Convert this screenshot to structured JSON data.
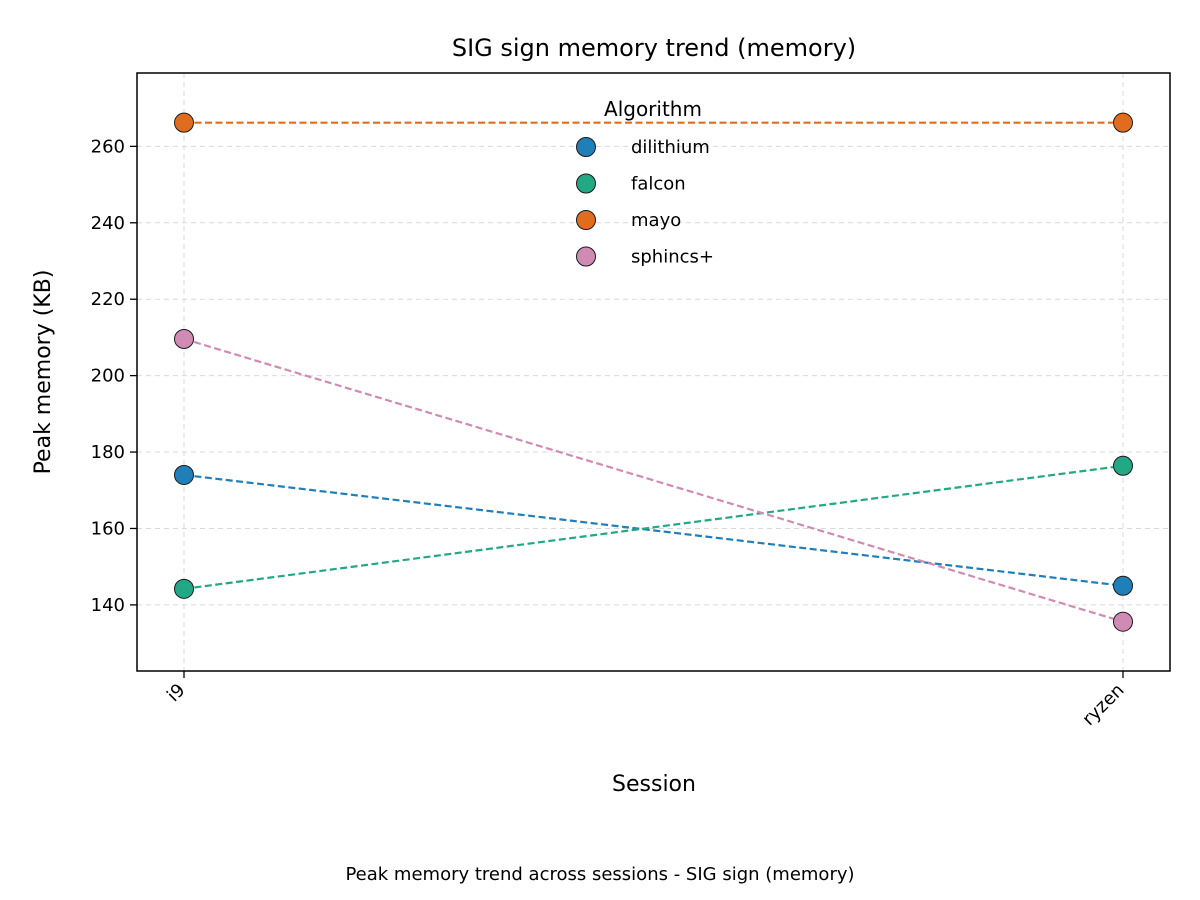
{
  "chart_data": {
    "type": "line",
    "title": "SIG sign memory trend (memory)",
    "xlabel": "Session",
    "ylabel": "Peak memory (KB)",
    "categories": [
      "i9",
      "ryzen"
    ],
    "ylim": [
      122.7,
      279.2
    ],
    "yticks": [
      140,
      160,
      180,
      200,
      220,
      240,
      260
    ],
    "grid": true,
    "line_style": "dashed",
    "legend": {
      "title": "Algorithm",
      "placement": "upper-center"
    },
    "series": [
      {
        "name": "dilithium",
        "color": "#1f7fb8",
        "values": [
          174.0,
          145.0
        ]
      },
      {
        "name": "falcon",
        "color": "#22a884",
        "values": [
          144.2,
          176.4
        ]
      },
      {
        "name": "mayo",
        "color": "#e06c1e",
        "values": [
          266.2,
          266.2
        ]
      },
      {
        "name": "sphincs+",
        "color": "#d08bb5",
        "values": [
          209.6,
          135.6
        ]
      }
    ]
  },
  "caption": "Peak memory trend across sessions - SIG sign (memory)"
}
